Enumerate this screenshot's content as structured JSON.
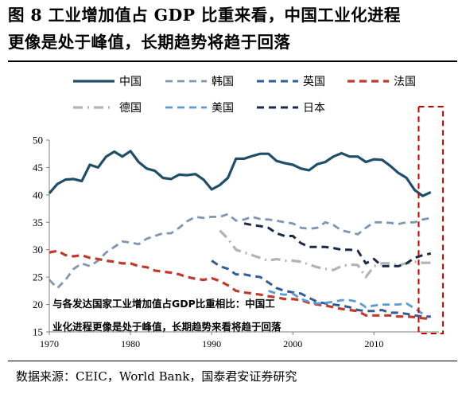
{
  "figure": {
    "title_line1": "图 8  工业增加值占 GDP 比重来看，中国工业化进程",
    "title_line2": "更像是处于峰值，长期趋势将趋于回落",
    "source": "数据来源：CEIC，World Bank，国泰君安证券研究"
  },
  "annotation": {
    "line1": "与各发达国家工业增加值占GDP比重相比：中国工",
    "line2": "业化进程更像是处于峰值，长期趋势来看将趋于回落"
  },
  "chart_data": {
    "type": "line",
    "xlim": [
      1970,
      2018
    ],
    "ylim": [
      15,
      50
    ],
    "xticks": [
      1970,
      1980,
      1990,
      2000,
      2010
    ],
    "yticks": [
      15,
      20,
      25,
      30,
      35,
      40,
      45,
      50
    ],
    "grid": false,
    "legend_position": "top",
    "highlight_box": {
      "x_start": 2015.5,
      "x_end": 2018.5,
      "style": "red dashed"
    },
    "series": [
      {
        "name": "中国",
        "color": "#1f4e6b",
        "dash": "solid",
        "width": 3.2,
        "x": [
          1970,
          1971,
          1972,
          1973,
          1974,
          1975,
          1976,
          1977,
          1978,
          1979,
          1980,
          1981,
          1982,
          1983,
          1984,
          1985,
          1986,
          1987,
          1988,
          1989,
          1990,
          1991,
          1992,
          1993,
          1994,
          1995,
          1996,
          1997,
          1998,
          1999,
          2000,
          2001,
          2002,
          2003,
          2004,
          2005,
          2006,
          2007,
          2008,
          2009,
          2010,
          2011,
          2012,
          2013,
          2014,
          2015,
          2016,
          2017
        ],
        "y": [
          40.3,
          42.0,
          42.8,
          42.9,
          42.5,
          45.5,
          45.0,
          47.0,
          47.9,
          47.0,
          48.0,
          46.0,
          44.8,
          44.4,
          43.1,
          42.9,
          43.7,
          43.6,
          43.8,
          42.8,
          41.0,
          41.8,
          43.1,
          46.6,
          46.6,
          47.1,
          47.5,
          47.5,
          46.2,
          45.8,
          45.5,
          44.8,
          44.5,
          45.6,
          46.0,
          47.0,
          47.6,
          47.0,
          47.0,
          46.0,
          46.5,
          46.4,
          45.3,
          44.0,
          43.1,
          40.9,
          39.8,
          40.5
        ]
      },
      {
        "name": "韩国",
        "color": "#7f95b2",
        "dash": "dash",
        "width": 2.8,
        "x": [
          1970,
          1971,
          1972,
          1973,
          1974,
          1975,
          1976,
          1977,
          1978,
          1979,
          1980,
          1981,
          1982,
          1983,
          1984,
          1985,
          1986,
          1987,
          1988,
          1989,
          1990,
          1991,
          1992,
          1993,
          1994,
          1995,
          1996,
          1997,
          1998,
          1999,
          2000,
          2001,
          2002,
          2003,
          2004,
          2005,
          2006,
          2007,
          2008,
          2009,
          2010,
          2011,
          2012,
          2013,
          2014,
          2015,
          2016,
          2017
        ],
        "y": [
          24.5,
          23.0,
          24.5,
          26.5,
          27.5,
          27.0,
          28.0,
          29.5,
          30.5,
          31.5,
          31.3,
          31.0,
          32.0,
          32.5,
          33.0,
          33.0,
          34.0,
          35.2,
          36.0,
          35.8,
          36.0,
          36.0,
          36.5,
          35.3,
          35.5,
          36.0,
          35.6,
          35.5,
          35.3,
          35.0,
          34.8,
          34.0,
          33.8,
          34.0,
          35.0,
          34.5,
          33.5,
          33.2,
          32.8,
          34.0,
          35.0,
          35.0,
          34.9,
          34.7,
          35.0,
          35.0,
          35.5,
          35.8
        ]
      },
      {
        "name": "英国",
        "color": "#2e5d9a",
        "dash": "dash",
        "width": 3.0,
        "x": [
          1990,
          1991,
          1992,
          1993,
          1994,
          1995,
          1996,
          1997,
          1998,
          1999,
          2000,
          2001,
          2002,
          2003,
          2004,
          2005,
          2006,
          2007,
          2008,
          2009,
          2010,
          2011,
          2012,
          2013,
          2014,
          2015,
          2016,
          2017
        ],
        "y": [
          28.0,
          27.0,
          26.5,
          25.5,
          25.5,
          25.2,
          25.0,
          24.0,
          23.0,
          22.5,
          22.2,
          22.0,
          21.2,
          20.5,
          20.2,
          20.0,
          19.8,
          19.5,
          19.0,
          18.8,
          18.8,
          19.0,
          18.5,
          18.5,
          18.3,
          18.0,
          17.8,
          17.8
        ]
      },
      {
        "name": "法国",
        "color": "#c0392b",
        "dash": "dash",
        "width": 3.2,
        "x": [
          1970,
          1971,
          1972,
          1973,
          1974,
          1975,
          1976,
          1977,
          1978,
          1979,
          1980,
          1981,
          1982,
          1983,
          1984,
          1985,
          1986,
          1987,
          1988,
          1989,
          1990,
          1991,
          1992,
          1993,
          1994,
          1995,
          1996,
          1997,
          1998,
          1999,
          2000,
          2001,
          2002,
          2003,
          2004,
          2005,
          2006,
          2007,
          2008,
          2009,
          2010,
          2011,
          2012,
          2013,
          2014,
          2015,
          2016,
          2017
        ],
        "y": [
          29.5,
          29.8,
          29.0,
          28.8,
          29.0,
          28.5,
          28.3,
          28.0,
          27.8,
          27.5,
          27.5,
          27.0,
          26.8,
          26.2,
          26.0,
          25.8,
          25.5,
          25.0,
          24.7,
          24.5,
          24.8,
          24.3,
          23.5,
          22.5,
          22.2,
          22.0,
          21.8,
          21.5,
          21.3,
          21.0,
          21.0,
          20.8,
          20.3,
          20.0,
          19.8,
          19.5,
          19.2,
          19.0,
          18.8,
          18.0,
          18.0,
          18.0,
          18.0,
          17.8,
          17.8,
          17.7,
          17.5,
          17.4
        ]
      },
      {
        "name": "德国",
        "color": "#b3b3b3",
        "dash": "dashdot",
        "width": 3.2,
        "x": [
          1991,
          1992,
          1993,
          1994,
          1995,
          1996,
          1997,
          1998,
          1999,
          2000,
          2001,
          2002,
          2003,
          2004,
          2005,
          2006,
          2007,
          2008,
          2009,
          2010,
          2011,
          2012,
          2013,
          2014,
          2015,
          2016,
          2017
        ],
        "y": [
          33.5,
          32.0,
          30.0,
          29.5,
          29.0,
          28.5,
          28.0,
          28.3,
          28.0,
          28.0,
          27.8,
          27.3,
          26.8,
          26.5,
          26.3,
          27.0,
          27.3,
          27.2,
          25.0,
          27.0,
          27.5,
          27.5,
          27.2,
          27.5,
          27.8,
          27.6,
          27.6
        ]
      },
      {
        "name": "美国",
        "color": "#5b9bd5",
        "dash": "dash",
        "width": 2.8,
        "x": [
          1997,
          1998,
          1999,
          2000,
          2001,
          2002,
          2003,
          2004,
          2005,
          2006,
          2007,
          2008,
          2009,
          2010,
          2011,
          2012,
          2013,
          2014,
          2015,
          2016
        ],
        "y": [
          22.5,
          22.0,
          21.8,
          22.0,
          21.0,
          20.5,
          20.2,
          20.3,
          20.5,
          20.8,
          20.8,
          20.5,
          19.5,
          19.8,
          20.0,
          20.0,
          20.0,
          20.2,
          19.3,
          18.3
        ]
      },
      {
        "name": "日本",
        "color": "#1c2a4a",
        "dash": "dash",
        "width": 3.0,
        "x": [
          1994,
          1995,
          1996,
          1997,
          1998,
          1999,
          2000,
          2001,
          2002,
          2003,
          2004,
          2005,
          2006,
          2007,
          2008,
          2009,
          2010,
          2011,
          2012,
          2013,
          2014,
          2015,
          2016,
          2017
        ],
        "y": [
          34.8,
          34.5,
          34.3,
          34.0,
          33.0,
          32.5,
          32.5,
          31.2,
          30.5,
          30.5,
          30.5,
          30.3,
          30.0,
          30.0,
          29.8,
          27.5,
          28.3,
          27.0,
          27.0,
          27.0,
          27.5,
          28.5,
          29.0,
          29.3
        ]
      }
    ]
  }
}
